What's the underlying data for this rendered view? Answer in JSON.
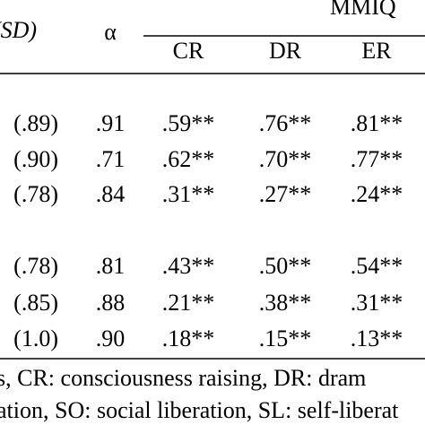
{
  "header": {
    "left": "(SD)",
    "alpha": "α",
    "group": "MMIQ",
    "columns": [
      "CR",
      "DR",
      "ER"
    ]
  },
  "table": {
    "rows": [
      [
        "(.89)",
        ".91",
        ".59**",
        ".76**",
        ".81**"
      ],
      [
        "(.90)",
        ".71",
        ".62**",
        ".70**",
        ".77**"
      ],
      [
        "(.78)",
        ".84",
        ".31**",
        ".27**",
        ".24**"
      ],
      [
        "(.78)",
        ".81",
        ".43**",
        ".50**",
        ".54**"
      ],
      [
        "(.85)",
        ".88",
        ".21**",
        ".38**",
        ".31**"
      ],
      [
        "(1.0)",
        ".90",
        ".18**",
        ".15**",
        ".13**"
      ]
    ]
  },
  "footnote": [
    "s, CR: consciousness raising, DR: dram",
    "ation, SO: social liberation, SL: self-liberat"
  ]
}
